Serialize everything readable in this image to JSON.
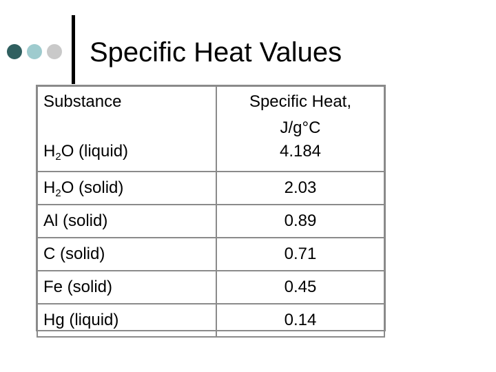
{
  "slide": {
    "title": "Specific Heat Values",
    "dot_colors": [
      "#2f5f5f",
      "#9ecbce",
      "#c9c9c9"
    ]
  },
  "table": {
    "header": {
      "substance": "Substance",
      "value_line1": "Specific Heat,",
      "value_line2": "J/g°C"
    },
    "rows": [
      {
        "pre": "H",
        "sub": "2",
        "post": "O (liquid)",
        "value": "4.184"
      },
      {
        "pre": "H",
        "sub": "2",
        "post": "O (solid)",
        "value": "2.03"
      },
      {
        "pre": "Al (solid)",
        "sub": "",
        "post": "",
        "value": "0.89"
      },
      {
        "pre": "C (solid)",
        "sub": "",
        "post": "",
        "value": "0.71"
      },
      {
        "pre": "Fe (solid)",
        "sub": "",
        "post": "",
        "value": "0.45"
      },
      {
        "pre": "Hg (liquid)",
        "sub": "",
        "post": "",
        "value": "0.14"
      }
    ]
  }
}
